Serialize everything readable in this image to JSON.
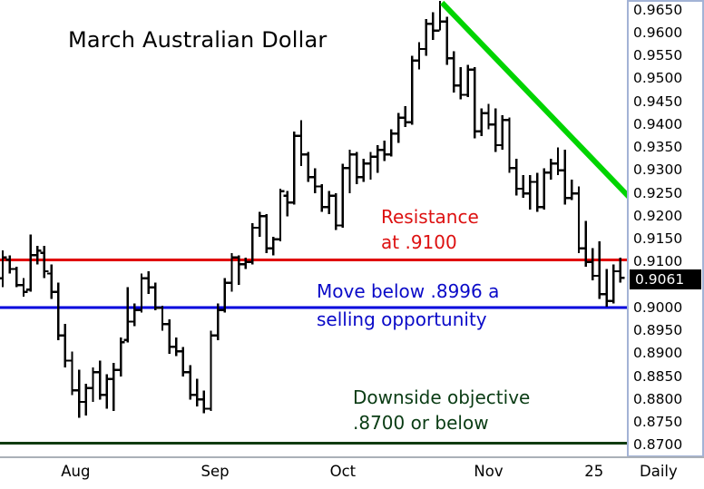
{
  "window": {
    "timeframe_label": "Daily"
  },
  "annotations": {
    "resistance_line1": "Resistance",
    "resistance_line2": "at .9100",
    "support_line1": "Move below .8996 a",
    "support_line2": "selling opportunity",
    "objective_line1": "Downside objective",
    "objective_line2": ".8700 or below"
  },
  "colors": {
    "bars": "#000000",
    "resistance_line": "#e00000",
    "resistance_text": "#dd1111",
    "sell_trigger_line": "#0000dd",
    "sell_trigger_text": "#0a0ac8",
    "objective_line": "#103c10",
    "objective_text": "#0a3c14",
    "trend_line": "#00d400",
    "last_price_box_bg": "#000000",
    "last_price_box_text": "#ffffff",
    "scale_border": "#a3b3d6"
  },
  "chart_data": {
    "type": "ohlc-bar",
    "title": "March Australian Dollar",
    "timeframe": "Daily",
    "last_price": 0.9061,
    "last_price_label": "0.9061",
    "price_axis": {
      "top": 0.965,
      "bottom": 0.87,
      "tick_step": 0.005,
      "ticks": [
        "0.9650",
        "0.9600",
        "0.9550",
        "0.9500",
        "0.9450",
        "0.9400",
        "0.9350",
        "0.9300",
        "0.9250",
        "0.9200",
        "0.9150",
        "0.9100",
        "0.9000",
        "0.8950",
        "0.8900",
        "0.8850",
        "0.8800",
        "0.8750",
        "0.8700"
      ]
    },
    "x_ticks": [
      {
        "label": "Aug",
        "bar": 10.5
      },
      {
        "label": "Sep",
        "bar": 30.6
      },
      {
        "label": "Oct",
        "bar": 49.0
      },
      {
        "label": "Nov",
        "bar": 70.0
      },
      {
        "label": "25",
        "bar": 85.2
      }
    ],
    "levels": [
      {
        "name": "resistance",
        "price": 0.91,
        "color": "#e00000"
      },
      {
        "name": "sell-trigger",
        "price": 0.8996,
        "color": "#0000dd"
      },
      {
        "name": "downside-objective",
        "price": 0.87,
        "color": "#103c10"
      }
    ],
    "trendline": {
      "from": {
        "bar": 63.3,
        "price": 0.9661
      },
      "to": {
        "bar": 90.3,
        "price": 0.9236
      },
      "color": "#00d400"
    },
    "bars": [
      [
        0.906,
        0.912,
        0.904,
        0.9105
      ],
      [
        0.91,
        0.911,
        0.907,
        0.908
      ],
      [
        0.908,
        0.9085,
        0.904,
        0.9045
      ],
      [
        0.9045,
        0.906,
        0.902,
        0.903
      ],
      [
        0.9035,
        0.9155,
        0.903,
        0.911
      ],
      [
        0.911,
        0.913,
        0.909,
        0.912
      ],
      [
        0.9115,
        0.913,
        0.906,
        0.9075
      ],
      [
        0.907,
        0.909,
        0.9015,
        0.903
      ],
      [
        0.903,
        0.905,
        0.8925,
        0.8935
      ],
      [
        0.8935,
        0.896,
        0.8865,
        0.888
      ],
      [
        0.888,
        0.89,
        0.8805,
        0.8815
      ],
      [
        0.8815,
        0.886,
        0.8755,
        0.879
      ],
      [
        0.879,
        0.883,
        0.876,
        0.882
      ],
      [
        0.882,
        0.8865,
        0.879,
        0.8855
      ],
      [
        0.8855,
        0.888,
        0.8795,
        0.8805
      ],
      [
        0.8805,
        0.885,
        0.8775,
        0.884
      ],
      [
        0.884,
        0.8875,
        0.877,
        0.886
      ],
      [
        0.886,
        0.893,
        0.8845,
        0.892
      ],
      [
        0.8925,
        0.904,
        0.892,
        0.8965
      ],
      [
        0.8965,
        0.9005,
        0.8955,
        0.899
      ],
      [
        0.899,
        0.907,
        0.8985,
        0.906
      ],
      [
        0.906,
        0.9075,
        0.9025,
        0.904
      ],
      [
        0.904,
        0.905,
        0.899,
        0.8995
      ],
      [
        0.8995,
        0.9,
        0.8945,
        0.896
      ],
      [
        0.896,
        0.897,
        0.8895,
        0.891
      ],
      [
        0.891,
        0.893,
        0.889,
        0.89
      ],
      [
        0.89,
        0.891,
        0.8845,
        0.8855
      ],
      [
        0.8855,
        0.887,
        0.8795,
        0.8805
      ],
      [
        0.8805,
        0.884,
        0.878,
        0.8795
      ],
      [
        0.8795,
        0.8815,
        0.8765,
        0.8775
      ],
      [
        0.8775,
        0.8945,
        0.877,
        0.8935
      ],
      [
        0.8935,
        0.9005,
        0.8925,
        0.899
      ],
      [
        0.899,
        0.906,
        0.8985,
        0.905
      ],
      [
        0.905,
        0.9115,
        0.903,
        0.9105
      ],
      [
        0.9105,
        0.911,
        0.9045,
        0.909
      ],
      [
        0.909,
        0.9105,
        0.908,
        0.9095
      ],
      [
        0.9095,
        0.918,
        0.909,
        0.917
      ],
      [
        0.917,
        0.9205,
        0.915,
        0.9195
      ],
      [
        0.9195,
        0.92,
        0.9115,
        0.9125
      ],
      [
        0.9125,
        0.915,
        0.911,
        0.9145
      ],
      [
        0.9145,
        0.9255,
        0.914,
        0.925
      ],
      [
        0.924,
        0.925,
        0.9195,
        0.9225
      ],
      [
        0.9225,
        0.938,
        0.922,
        0.937
      ],
      [
        0.937,
        0.9405,
        0.9305,
        0.933
      ],
      [
        0.933,
        0.9335,
        0.927,
        0.928
      ],
      [
        0.928,
        0.93,
        0.9245,
        0.926
      ],
      [
        0.926,
        0.9265,
        0.9205,
        0.9215
      ],
      [
        0.9215,
        0.925,
        0.92,
        0.924
      ],
      [
        0.924,
        0.9245,
        0.9165,
        0.9175
      ],
      [
        0.9175,
        0.931,
        0.917,
        0.93
      ],
      [
        0.93,
        0.934,
        0.9245,
        0.933
      ],
      [
        0.933,
        0.9335,
        0.9265,
        0.928
      ],
      [
        0.928,
        0.932,
        0.927,
        0.931
      ],
      [
        0.931,
        0.9335,
        0.9275,
        0.9325
      ],
      [
        0.9325,
        0.935,
        0.929,
        0.934
      ],
      [
        0.934,
        0.936,
        0.9315,
        0.933
      ],
      [
        0.933,
        0.9385,
        0.9325,
        0.9375
      ],
      [
        0.9375,
        0.942,
        0.9355,
        0.941
      ],
      [
        0.941,
        0.9435,
        0.939,
        0.94
      ],
      [
        0.94,
        0.9545,
        0.9395,
        0.9535
      ],
      [
        0.9535,
        0.9575,
        0.9515,
        0.956
      ],
      [
        0.956,
        0.9625,
        0.9545,
        0.9615
      ],
      [
        0.9615,
        0.964,
        0.958,
        0.96
      ],
      [
        0.96,
        0.9665,
        0.96,
        0.962
      ],
      [
        0.962,
        0.963,
        0.9525,
        0.954
      ],
      [
        0.954,
        0.9555,
        0.9465,
        0.948
      ],
      [
        0.948,
        0.952,
        0.945,
        0.946
      ],
      [
        0.946,
        0.9525,
        0.9455,
        0.9515
      ],
      [
        0.9515,
        0.952,
        0.9365,
        0.938
      ],
      [
        0.938,
        0.943,
        0.937,
        0.942
      ],
      [
        0.942,
        0.944,
        0.9385,
        0.9395
      ],
      [
        0.9395,
        0.943,
        0.9335,
        0.935
      ],
      [
        0.935,
        0.9415,
        0.934,
        0.9405
      ],
      [
        0.9405,
        0.941,
        0.929,
        0.93
      ],
      [
        0.93,
        0.932,
        0.924,
        0.9255
      ],
      [
        0.9255,
        0.9285,
        0.9235,
        0.9245
      ],
      [
        0.9245,
        0.9285,
        0.921,
        0.927
      ],
      [
        0.927,
        0.929,
        0.9205,
        0.9215
      ],
      [
        0.9215,
        0.93,
        0.921,
        0.929
      ],
      [
        0.929,
        0.932,
        0.9275,
        0.931
      ],
      [
        0.931,
        0.9345,
        0.9285,
        0.9295
      ],
      [
        0.9295,
        0.934,
        0.922,
        0.9235
      ],
      [
        0.9235,
        0.9275,
        0.923,
        0.9245
      ],
      [
        0.9245,
        0.926,
        0.9115,
        0.9125
      ],
      [
        0.9125,
        0.9185,
        0.9085,
        0.9095
      ],
      [
        0.9095,
        0.9125,
        0.9055,
        0.9065
      ],
      [
        0.9065,
        0.914,
        0.9015,
        0.9025
      ],
      [
        0.9025,
        0.908,
        0.8998,
        0.901
      ],
      [
        0.901,
        0.909,
        0.9005,
        0.9075
      ],
      [
        0.9075,
        0.9105,
        0.905,
        0.9061
      ]
    ]
  }
}
